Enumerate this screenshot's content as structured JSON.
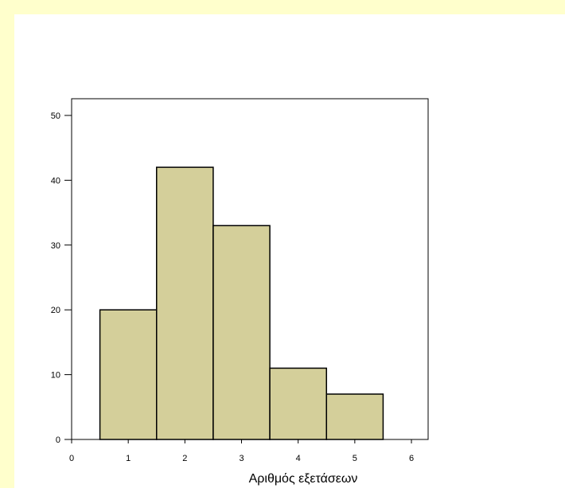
{
  "colors": {
    "background_strip": "#ffffcc",
    "bar_fill": "#d4cf9a",
    "bar_stroke": "#000000",
    "axis": "#000000"
  },
  "chart_data": {
    "type": "bar",
    "title": "",
    "xlabel": "Αριθμός εξετάσεων",
    "ylabel": "",
    "categories": [
      "1",
      "2",
      "3",
      "4",
      "5"
    ],
    "values": [
      20,
      42,
      33,
      11,
      7
    ],
    "x_ticks": [
      "0",
      "1",
      "2",
      "3",
      "4",
      "5",
      "6"
    ],
    "y_ticks": [
      "0",
      "10",
      "20",
      "30",
      "40",
      "50"
    ],
    "xlim": [
      0,
      6
    ],
    "ylim": [
      0,
      52
    ],
    "grid": false,
    "legend": "none"
  }
}
